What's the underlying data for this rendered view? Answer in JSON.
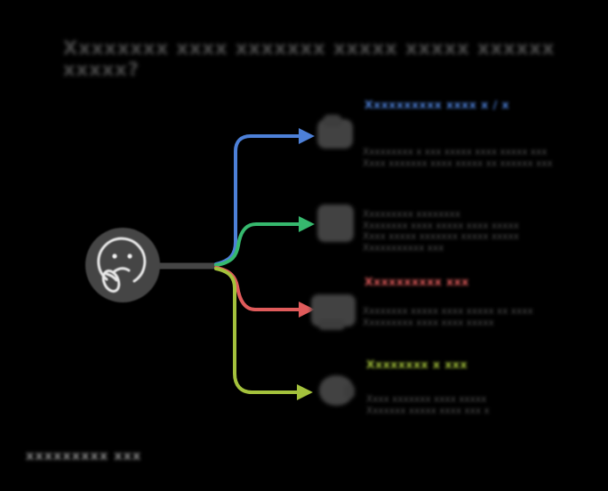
{
  "canvas": {
    "background": "#000000"
  },
  "title": {
    "redacted_blurred_text": "Xxxxxxxx xxxx xxxxxxx xxxxx xxxxx xxxxxx xxxxx?",
    "color": "#4c4c4c"
  },
  "center": {
    "icon": "thinking-face-emoji",
    "node_color": "#454545",
    "face_color": "#f2f2f2"
  },
  "trunk_color": "#454545",
  "branches": [
    {
      "id": "topic-1",
      "color": "#4d80d8",
      "heading": {
        "redacted_blurred_text": "Xxxxxxxxxx xxxx x / x",
        "color": "#4d80d8"
      },
      "icon": "blurred-emoji-icon",
      "lines": [
        "Xxxxxxxxx x xxx xxxxx xxxx xxxxx xxx",
        "Xxxx xxxxxxx xxxx xxxxx xx xxxxxx xxx"
      ]
    },
    {
      "id": "topic-2",
      "color": "#36b96e",
      "heading": null,
      "icon": "blurred-emoji-icon",
      "lines": [
        "Xxxxxxxxx xxxxxxxx",
        "Xxxxxxxx xxxx xxxxx xxxx xxxxx",
        "Xxxx xxxxx xxxxxxx xxxxx xxxxx",
        "Xxxxxxxxxxx xxx"
      ]
    },
    {
      "id": "topic-3",
      "color": "#e05b5b",
      "heading": {
        "redacted_blurred_text": "Xxxxxxxxxx xxx",
        "color": "#e05b5b"
      },
      "icon": "blurred-emoji-icon",
      "lines": [
        "Xxxxxxxx xxxxx xxxx xxxxx xx xxxx",
        "Xxxxxxxxx xxxx xxxx xxxxx"
      ]
    },
    {
      "id": "topic-4",
      "color": "#a4c23c",
      "heading": {
        "redacted_blurred_text": "Xxxxxxxx x xxx",
        "color": "#a4c23c"
      },
      "icon": "blurred-emoji-icon",
      "lines": [
        "Xxxx xxxxxxx xxxx xxxxx",
        "Xxxxxxx xxxxx xxxx xxx x"
      ]
    }
  ],
  "watermark": {
    "redacted_blurred_text": "xxxxxxxxx xxx",
    "color": "#868686"
  }
}
